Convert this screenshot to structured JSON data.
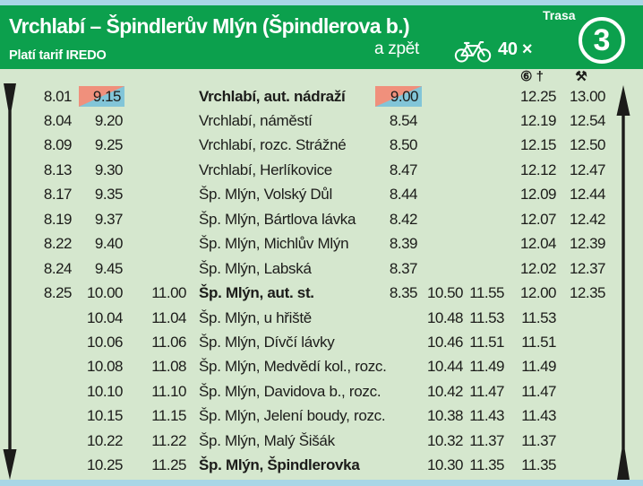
{
  "header": {
    "title": "Vrchlabí – Špindlerův Mlýn (Špindlerova b.)",
    "tariff": "Platí tarif IREDO",
    "return_label": "a zpět",
    "bike_count": "40 ×",
    "route_label": "Trasa",
    "route_number": "3"
  },
  "symbols": {
    "saturday_holiday": "⑥ †",
    "workdays": "⚒"
  },
  "colors": {
    "header_green": "#0ca04d",
    "body_light_green": "#d5e7ce",
    "edge_light_blue": "#a9d6e6",
    "highlight_pink": "#f0907c",
    "highlight_blue": "#82c5d8",
    "ink": "#1c1c1a"
  },
  "table": {
    "rows": [
      {
        "l1": "8.01",
        "l2": "9.15",
        "l3": "",
        "station": "Vrchlabí, aut. nádraží",
        "r1": "9.00",
        "r2": "",
        "r3": "",
        "r4": "12.25",
        "r5": "13.00",
        "bold": true,
        "hl": true
      },
      {
        "l1": "8.04",
        "l2": "9.20",
        "l3": "",
        "station": "Vrchlabí, náměstí",
        "r1": "8.54",
        "r2": "",
        "r3": "",
        "r4": "12.19",
        "r5": "12.54",
        "bold": false,
        "hl": false
      },
      {
        "l1": "8.09",
        "l2": "9.25",
        "l3": "",
        "station": "Vrchlabí, rozc. Strážné",
        "r1": "8.50",
        "r2": "",
        "r3": "",
        "r4": "12.15",
        "r5": "12.50",
        "bold": false,
        "hl": false
      },
      {
        "l1": "8.13",
        "l2": "9.30",
        "l3": "",
        "station": "Vrchlabí, Herlíkovice",
        "r1": "8.47",
        "r2": "",
        "r3": "",
        "r4": "12.12",
        "r5": "12.47",
        "bold": false,
        "hl": false
      },
      {
        "l1": "8.17",
        "l2": "9.35",
        "l3": "",
        "station": "Šp. Mlýn, Volský Důl",
        "r1": "8.44",
        "r2": "",
        "r3": "",
        "r4": "12.09",
        "r5": "12.44",
        "bold": false,
        "hl": false
      },
      {
        "l1": "8.19",
        "l2": "9.37",
        "l3": "",
        "station": "Šp. Mlýn, Bártlova lávka",
        "r1": "8.42",
        "r2": "",
        "r3": "",
        "r4": "12.07",
        "r5": "12.42",
        "bold": false,
        "hl": false
      },
      {
        "l1": "8.22",
        "l2": "9.40",
        "l3": "",
        "station": "Šp. Mlýn, Michlův Mlýn",
        "r1": "8.39",
        "r2": "",
        "r3": "",
        "r4": "12.04",
        "r5": "12.39",
        "bold": false,
        "hl": false
      },
      {
        "l1": "8.24",
        "l2": "9.45",
        "l3": "",
        "station": "Šp. Mlýn, Labská",
        "r1": "8.37",
        "r2": "",
        "r3": "",
        "r4": "12.02",
        "r5": "12.37",
        "bold": false,
        "hl": false
      },
      {
        "l1": "8.25",
        "l2": "10.00",
        "l3": "11.00",
        "station": "Šp. Mlýn, aut. st.",
        "r1": "8.35",
        "r2": "10.50",
        "r3": "11.55",
        "r4": "12.00",
        "r5": "12.35",
        "bold": true,
        "hl": false
      },
      {
        "l1": "",
        "l2": "10.04",
        "l3": "11.04",
        "station": "Šp. Mlýn, u hřiště",
        "r1": "",
        "r2": "10.48",
        "r3": "11.53",
        "r4": "11.53",
        "r5": "",
        "bold": false,
        "hl": false
      },
      {
        "l1": "",
        "l2": "10.06",
        "l3": "11.06",
        "station": "Šp. Mlýn, Dívčí lávky",
        "r1": "",
        "r2": "10.46",
        "r3": "11.51",
        "r4": "11.51",
        "r5": "",
        "bold": false,
        "hl": false
      },
      {
        "l1": "",
        "l2": "10.08",
        "l3": "11.08",
        "station": "Šp. Mlýn, Medvědí kol., rozc.",
        "r1": "",
        "r2": "10.44",
        "r3": "11.49",
        "r4": "11.49",
        "r5": "",
        "bold": false,
        "hl": false
      },
      {
        "l1": "",
        "l2": "10.10",
        "l3": "11.10",
        "station": "Šp. Mlýn, Davidova b., rozc.",
        "r1": "",
        "r2": "10.42",
        "r3": "11.47",
        "r4": "11.47",
        "r5": "",
        "bold": false,
        "hl": false
      },
      {
        "l1": "",
        "l2": "10.15",
        "l3": "11.15",
        "station": "Šp. Mlýn, Jelení boudy, rozc.",
        "r1": "",
        "r2": "10.38",
        "r3": "11.43",
        "r4": "11.43",
        "r5": "",
        "bold": false,
        "hl": false
      },
      {
        "l1": "",
        "l2": "10.22",
        "l3": "11.22",
        "station": "Šp. Mlýn, Malý Šišák",
        "r1": "",
        "r2": "10.32",
        "r3": "11.37",
        "r4": "11.37",
        "r5": "",
        "bold": false,
        "hl": false
      },
      {
        "l1": "",
        "l2": "10.25",
        "l3": "11.25",
        "station": "Šp. Mlýn, Špindlerovka",
        "r1": "",
        "r2": "10.30",
        "r3": "11.35",
        "r4": "11.35",
        "r5": "",
        "bold": true,
        "hl": false
      }
    ]
  }
}
